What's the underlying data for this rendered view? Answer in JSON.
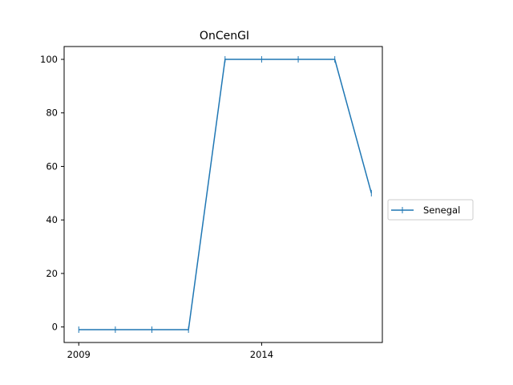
{
  "chart_data": {
    "type": "line",
    "title": "OnCenGI",
    "xlabel": "",
    "ylabel": "",
    "x": [
      2009,
      2010,
      2011,
      2012,
      2013,
      2014,
      2015,
      2016,
      2017
    ],
    "series": [
      {
        "name": "Senegal",
        "values": [
          -1,
          -1,
          -1,
          -1,
          100,
          100,
          100,
          100,
          50
        ],
        "color": "#1f77b4",
        "marker": "vertical-line"
      }
    ],
    "xlim": [
      2008.6,
      2017.3
    ],
    "ylim": [
      -5.8,
      104.8
    ],
    "x_ticks": [
      2009,
      2014
    ],
    "y_ticks": [
      0,
      20,
      40,
      60,
      80,
      100
    ],
    "grid": false,
    "legend_position": "outside-right"
  }
}
